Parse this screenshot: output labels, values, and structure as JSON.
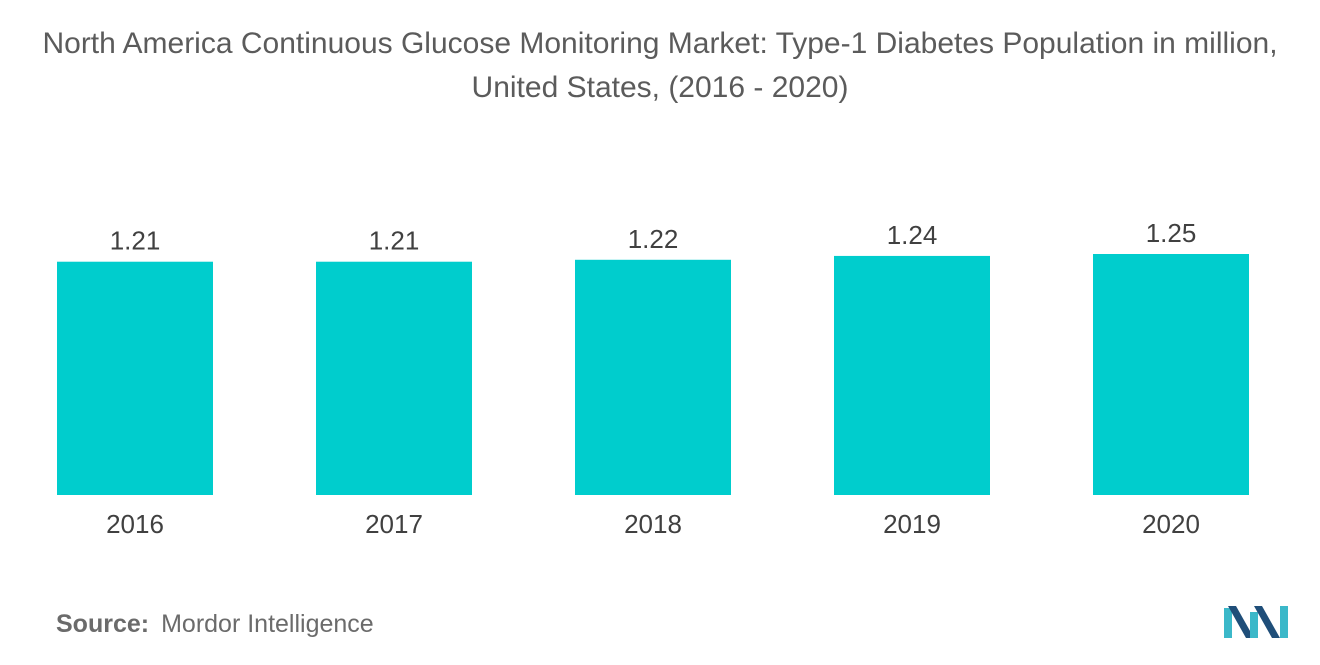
{
  "title": "North America Continuous Glucose Monitoring Market: Type-1 Diabetes Population in million, United States, (2016 - 2020)",
  "source": {
    "label": "Source:",
    "value": "Mordor Intelligence"
  },
  "colors": {
    "bar": "#00cdcd",
    "text": "#404040",
    "logo_dark": "#1f4e79",
    "logo_light": "#3bb8c9"
  },
  "chart_data": {
    "type": "bar",
    "title": "North America Continuous Glucose Monitoring Market: Type-1 Diabetes Population in million, United States, (2016 - 2020)",
    "xlabel": "",
    "ylabel": "",
    "categories": [
      "2016",
      "2017",
      "2018",
      "2019",
      "2020"
    ],
    "values": [
      1.21,
      1.21,
      1.22,
      1.24,
      1.25
    ],
    "value_labels": [
      "1.21",
      "1.21",
      "1.22",
      "1.24",
      "1.25"
    ],
    "ylim": [
      0,
      1.25
    ],
    "grid": false,
    "legend": "none"
  }
}
